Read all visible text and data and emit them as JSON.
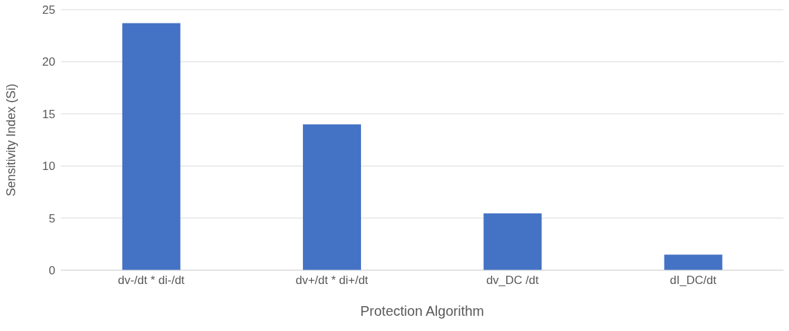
{
  "chart_data": {
    "type": "bar",
    "xlabel": "Protection Algorithm",
    "ylabel": "Sensitivity Index (Si)",
    "categories": [
      "dv-/dt * di-/dt",
      "dv+/dt * di+/dt",
      "dv_DC /dt",
      "dI_DC/dt"
    ],
    "values": [
      23.7,
      14.0,
      5.45,
      1.5
    ],
    "color": "#4472c4",
    "ylim": [
      0,
      25
    ],
    "yticks": [
      0,
      5,
      10,
      15,
      20,
      25
    ],
    "grid": "y"
  }
}
